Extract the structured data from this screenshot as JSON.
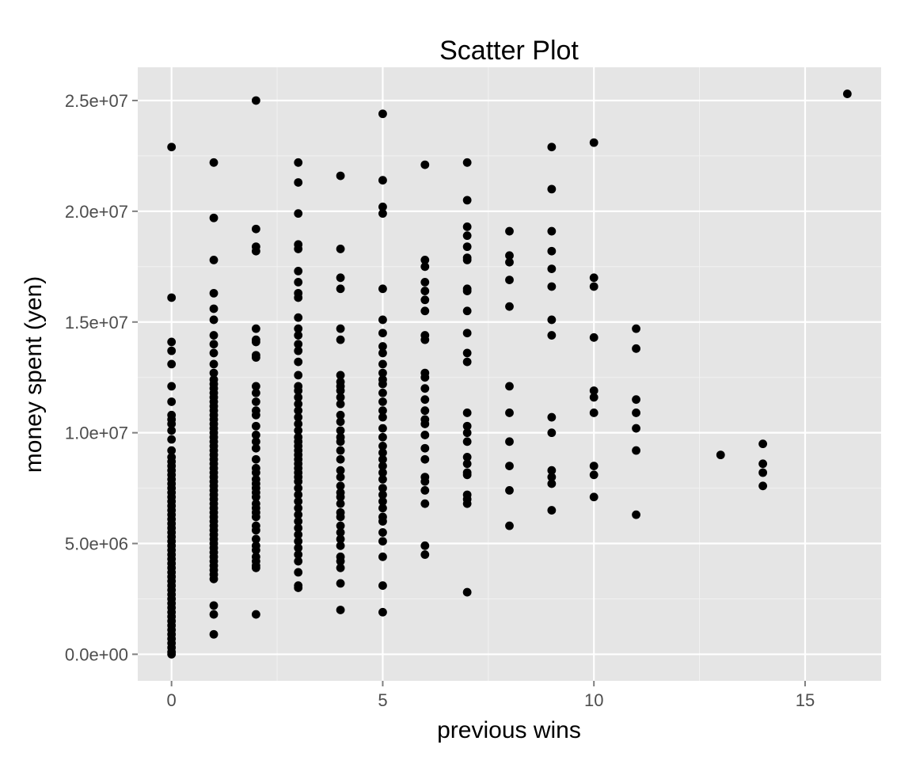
{
  "chart_data": {
    "type": "scatter",
    "title": "Scatter Plot",
    "xlabel": "previous wins",
    "ylabel": "money spent (yen)",
    "xlim": [
      -0.8,
      16.8
    ],
    "ylim": [
      -1200000,
      26500000
    ],
    "x_ticks": [
      0,
      5,
      10,
      15
    ],
    "x_tick_labels": [
      "0",
      "5",
      "10",
      "15"
    ],
    "y_ticks": [
      0,
      5000000,
      10000000,
      15000000,
      20000000,
      25000000
    ],
    "y_tick_labels": [
      "0.0e+00",
      "5.0e+06",
      "1.0e+07",
      "1.5e+07",
      "2.0e+07",
      "2.5e+07"
    ],
    "grid": true,
    "background": "#e5e5e5",
    "point_color": "#000000",
    "groups": [
      {
        "x": 0,
        "y": [
          22900000,
          16100000,
          14100000,
          13700000,
          13100000,
          12100000,
          11400000,
          10800000,
          10600000,
          10400000,
          10100000,
          9700000,
          9200000,
          8900000,
          8700000,
          8500000,
          8300000,
          8100000,
          7900000,
          7700000,
          7500000,
          7300000,
          7100000,
          6900000,
          6700000,
          6500000,
          6300000,
          6100000,
          5900000,
          5700000,
          5500000,
          5300000,
          5100000,
          4900000,
          4700000,
          4500000,
          4300000,
          4100000,
          3900000,
          3700000,
          3500000,
          3300000,
          3100000,
          2900000,
          2700000,
          2500000,
          2300000,
          2100000,
          1900000,
          1700000,
          1500000,
          1300000,
          1100000,
          900000,
          700000,
          500000,
          300000,
          100000,
          0
        ]
      },
      {
        "x": 1,
        "y": [
          22200000,
          19700000,
          17800000,
          16300000,
          15600000,
          15100000,
          14400000,
          14000000,
          13600000,
          13100000,
          12700000,
          12400000,
          12200000,
          12000000,
          11800000,
          11600000,
          11400000,
          11200000,
          11000000,
          10800000,
          10600000,
          10400000,
          10200000,
          10000000,
          9800000,
          9600000,
          9400000,
          9200000,
          9000000,
          8800000,
          8600000,
          8400000,
          8200000,
          8000000,
          7800000,
          7600000,
          7400000,
          7200000,
          7000000,
          6800000,
          6600000,
          6400000,
          6200000,
          6000000,
          5800000,
          5600000,
          5400000,
          5200000,
          5000000,
          4800000,
          4600000,
          4400000,
          4200000,
          4000000,
          3800000,
          3600000,
          3400000,
          2200000,
          1800000,
          900000
        ]
      },
      {
        "x": 2,
        "y": [
          25000000,
          19200000,
          18400000,
          18200000,
          14700000,
          14200000,
          14100000,
          13500000,
          13400000,
          12100000,
          11800000,
          11400000,
          11000000,
          10800000,
          10300000,
          9900000,
          9600000,
          9300000,
          8800000,
          8400000,
          8200000,
          7900000,
          7700000,
          7500000,
          7300000,
          7100000,
          6800000,
          6600000,
          6400000,
          6200000,
          5800000,
          5600000,
          5200000,
          4900000,
          4700000,
          4400000,
          4200000,
          4000000,
          3900000,
          1800000
        ]
      },
      {
        "x": 3,
        "y": [
          22200000,
          21300000,
          19900000,
          18500000,
          18300000,
          17300000,
          16800000,
          16300000,
          16100000,
          15200000,
          14700000,
          14400000,
          14000000,
          13700000,
          13200000,
          12600000,
          12100000,
          11900000,
          11600000,
          11300000,
          11000000,
          10700000,
          10400000,
          10100000,
          9800000,
          9600000,
          9400000,
          9200000,
          9000000,
          8800000,
          8600000,
          8400000,
          8200000,
          8000000,
          7800000,
          7500000,
          7200000,
          6900000,
          6600000,
          6300000,
          6000000,
          5700000,
          5400000,
          5100000,
          4800000,
          4500000,
          4200000,
          3700000,
          3100000,
          3000000
        ]
      },
      {
        "x": 4,
        "y": [
          21600000,
          18300000,
          17000000,
          16500000,
          14700000,
          14200000,
          12600000,
          12300000,
          12100000,
          11900000,
          11600000,
          11300000,
          10800000,
          10500000,
          10100000,
          9800000,
          9600000,
          9200000,
          8800000,
          8300000,
          8000000,
          7600000,
          7300000,
          7100000,
          6800000,
          6400000,
          6200000,
          5800000,
          5500000,
          5200000,
          4900000,
          4400000,
          4200000,
          3900000,
          3200000,
          2000000
        ]
      },
      {
        "x": 5,
        "y": [
          24400000,
          21400000,
          20200000,
          19900000,
          16500000,
          15100000,
          14500000,
          13900000,
          13600000,
          13100000,
          12700000,
          12400000,
          12200000,
          11800000,
          11400000,
          11000000,
          10700000,
          10200000,
          9800000,
          9400000,
          9100000,
          8800000,
          8500000,
          8200000,
          7900000,
          7500000,
          7200000,
          6900000,
          6600000,
          6200000,
          6000000,
          5500000,
          5100000,
          4400000,
          3100000,
          1900000
        ]
      },
      {
        "x": 6,
        "y": [
          22100000,
          17800000,
          17500000,
          16800000,
          16400000,
          16000000,
          15500000,
          14400000,
          14200000,
          12700000,
          12500000,
          12000000,
          11500000,
          11000000,
          10600000,
          10400000,
          9900000,
          9300000,
          8800000,
          8000000,
          7800000,
          7400000,
          6800000,
          4900000,
          4500000
        ]
      },
      {
        "x": 7,
        "y": [
          22200000,
          20500000,
          19300000,
          18900000,
          18400000,
          17900000,
          17800000,
          16500000,
          16400000,
          15500000,
          14500000,
          13600000,
          13200000,
          10900000,
          10300000,
          10000000,
          9600000,
          8900000,
          8600000,
          8200000,
          8100000,
          7200000,
          7000000,
          6800000,
          2800000
        ]
      },
      {
        "x": 8,
        "y": [
          19100000,
          18000000,
          17700000,
          16900000,
          15700000,
          12100000,
          10900000,
          9600000,
          8500000,
          7400000,
          5800000
        ]
      },
      {
        "x": 9,
        "y": [
          22900000,
          21000000,
          19100000,
          18200000,
          17400000,
          16600000,
          15100000,
          14400000,
          10700000,
          10000000,
          8300000,
          8000000,
          7700000,
          6500000
        ]
      },
      {
        "x": 10,
        "y": [
          23100000,
          17000000,
          16600000,
          14300000,
          11900000,
          11600000,
          10900000,
          8500000,
          8100000,
          7100000
        ]
      },
      {
        "x": 11,
        "y": [
          14700000,
          13800000,
          11500000,
          10900000,
          10200000,
          9200000,
          6300000
        ]
      },
      {
        "x": 13,
        "y": [
          9000000
        ]
      },
      {
        "x": 14,
        "y": [
          9500000,
          8600000,
          8200000,
          7600000
        ]
      },
      {
        "x": 16,
        "y": [
          25300000
        ]
      }
    ]
  }
}
